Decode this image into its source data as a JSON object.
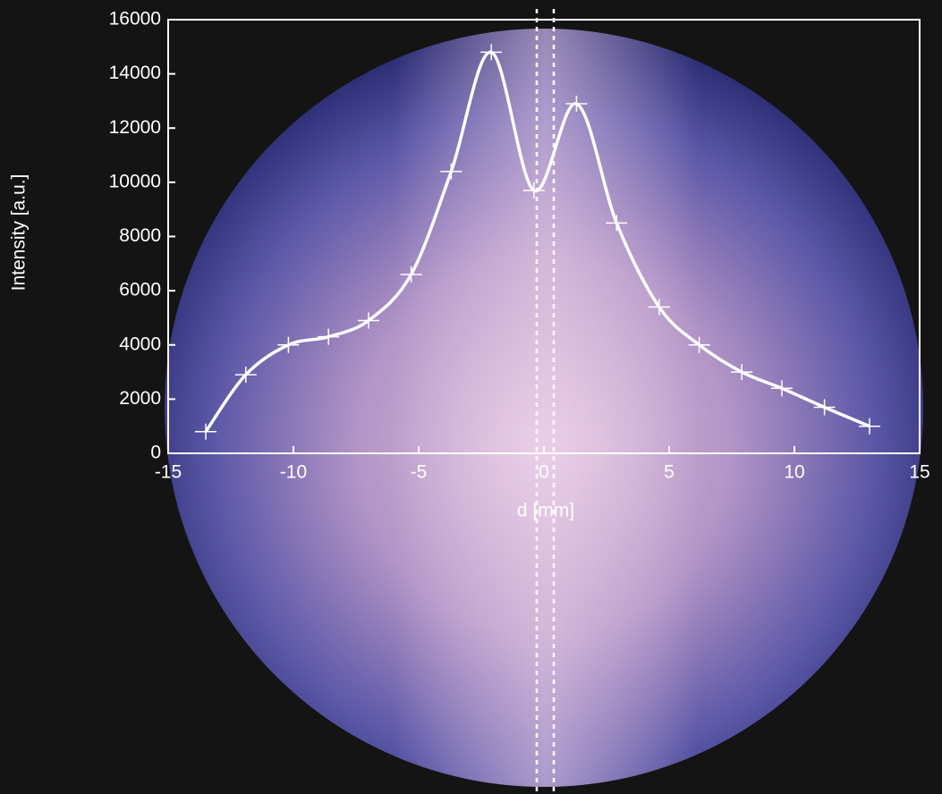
{
  "chart_data": {
    "type": "line",
    "xlabel": "d [mm]",
    "ylabel": "Intensity [a.u.]",
    "x": [
      -13.5,
      -11.9,
      -10.2,
      -8.6,
      -7.0,
      -5.3,
      -3.7,
      -2.1,
      -0.4,
      1.3,
      2.9,
      4.6,
      6.2,
      7.9,
      9.5,
      11.2,
      13.0
    ],
    "series": [
      {
        "color": "#ffffff",
        "values": [
          800,
          2900,
          4000,
          4300,
          4900,
          6600,
          10400,
          14800,
          9700,
          12900,
          8500,
          5400,
          4000,
          3000,
          2400,
          1700,
          1000
        ]
      }
    ],
    "xlim": [
      -15,
      15
    ],
    "xticks": [
      -15,
      -10,
      -5,
      0,
      5,
      10,
      15
    ],
    "ylim": [
      0,
      16000
    ],
    "yticks": [
      0,
      2000,
      4000,
      6000,
      8000,
      10000,
      12000,
      14000,
      16000
    ]
  }
}
